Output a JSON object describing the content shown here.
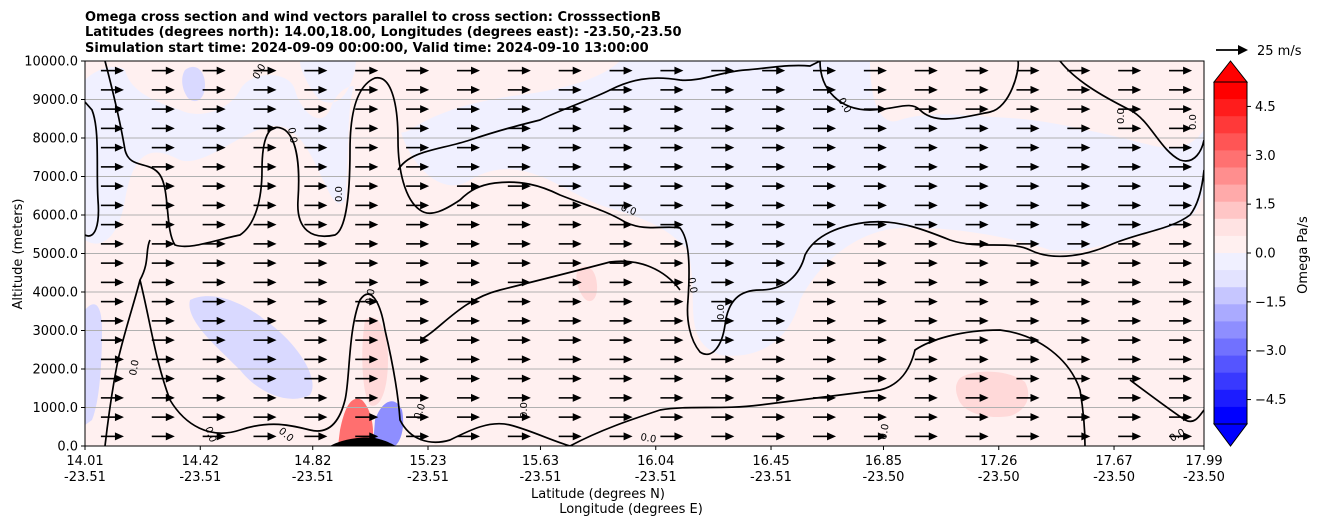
{
  "chart_data": {
    "type": "heatmap",
    "title_lines": [
      "Omega cross section and wind vectors parallel to cross section: CrosssectionB",
      "Latitudes (degrees north): 14.00,18.00, Longitudes (degrees east): -23.50,-23.50",
      "Simulation start time: 2024-09-09 00:00:00, Valid time: 2024-09-10 13:00:00"
    ],
    "xlabel_lines": [
      "Latitude (degrees N)",
      "Longitude (degrees E)"
    ],
    "ylabel": "Altitude (meters)",
    "x_ticks": [
      {
        "lat": "14.01",
        "lon": "-23.51"
      },
      {
        "lat": "14.42",
        "lon": "-23.51"
      },
      {
        "lat": "14.82",
        "lon": "-23.51"
      },
      {
        "lat": "15.23",
        "lon": "-23.51"
      },
      {
        "lat": "15.63",
        "lon": "-23.51"
      },
      {
        "lat": "16.04",
        "lon": "-23.51"
      },
      {
        "lat": "16.45",
        "lon": "-23.51"
      },
      {
        "lat": "16.85",
        "lon": "-23.50"
      },
      {
        "lat": "17.26",
        "lon": "-23.50"
      },
      {
        "lat": "17.67",
        "lon": "-23.50"
      },
      {
        "lat": "17.99",
        "lon": "-23.50"
      }
    ],
    "xlim": [
      14.01,
      17.99
    ],
    "y_ticks": [
      "0.0",
      "1000.0",
      "2000.0",
      "3000.0",
      "4000.0",
      "5000.0",
      "6000.0",
      "7000.0",
      "8000.0",
      "9000.0",
      "10000.0"
    ],
    "ylim": [
      0,
      10000
    ],
    "grid": "horizontal",
    "colorbar": {
      "label": "Omega Pa/s",
      "ticks": [
        "4.5",
        "3.0",
        "1.5",
        "0.0",
        "−1.5",
        "−3.0",
        "−4.5"
      ],
      "range": [
        -5.25,
        5.25
      ],
      "extend": "both",
      "colors_top_to_bottom": [
        "#ff0000",
        "#ff1c1c",
        "#ff3939",
        "#ff5555",
        "#ff7171",
        "#ff8e8e",
        "#ffaaaa",
        "#ffc6c6",
        "#ffe3e3",
        "#fff0f0",
        "#f0f0ff",
        "#e3e3ff",
        "#c6c6ff",
        "#aaaaff",
        "#8e8eff",
        "#7171ff",
        "#5555ff",
        "#3939ff",
        "#1c1c1c",
        "#0000ff"
      ],
      "over_color": "#ff0000",
      "under_color": "#0000ff"
    },
    "contour_level_label": "0.0",
    "quiver_key": {
      "label": "25 m/s",
      "speed": 25
    },
    "wind": {
      "u_ms": 18,
      "w_ms": 0
    },
    "field_colors": {
      "positive": "#fff0f0",
      "negative": "#f0f0ff",
      "strong_positive": "#ffd9d9",
      "strong_negative": "#d9d9ff"
    }
  }
}
